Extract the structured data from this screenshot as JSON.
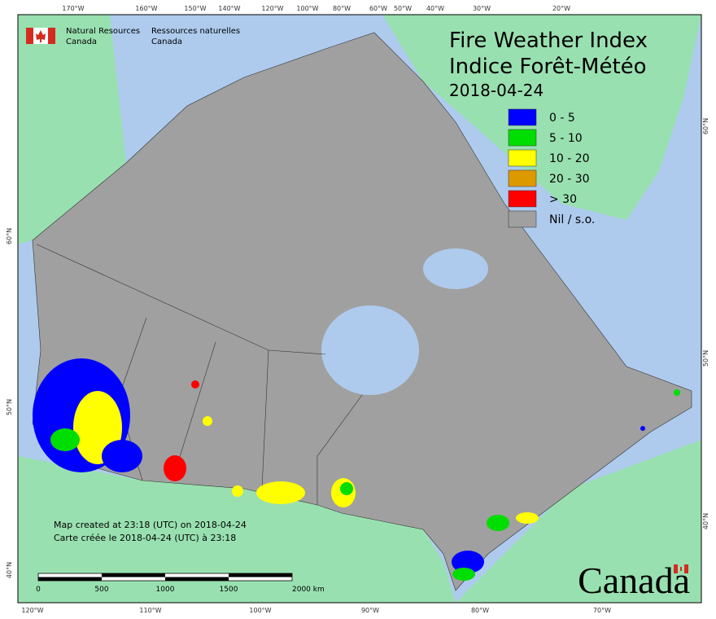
{
  "agency": {
    "en_line1": "Natural Resources",
    "en_line2": "Canada",
    "fr_line1": "Ressources naturelles",
    "fr_line2": "Canada"
  },
  "title": {
    "en": "Fire Weather Index",
    "fr": "Indice Forêt-Météo",
    "date": "2018-04-24"
  },
  "legend": [
    {
      "label": "0 - 5",
      "color": "#0000ff"
    },
    {
      "label": "5 - 10",
      "color": "#00dd00"
    },
    {
      "label": "10 - 20",
      "color": "#ffff00"
    },
    {
      "label": "20 - 30",
      "color": "#dd9900"
    },
    {
      "label": "> 30",
      "color": "#ff0000"
    },
    {
      "label": "Nil / s.o.",
      "color": "#a0a0a0"
    }
  ],
  "graticule": {
    "top": [
      "170°W",
      "160°W",
      "150°W",
      "140°W",
      "120°W",
      "100°W",
      "80°W",
      "60°W",
      "50°W",
      "40°W",
      "30°W",
      "20°W"
    ],
    "bottom": [
      "120°W",
      "110°W",
      "100°W",
      "90°W",
      "80°W",
      "70°W"
    ],
    "left": [
      "60°N",
      "50°N",
      "40°N"
    ],
    "right": [
      "60°N",
      "50°N",
      "40°N"
    ]
  },
  "footer": {
    "created_en": "Map created at 23:18 (UTC) on 2018-04-24",
    "created_fr": "Carte créée le 2018-04-24 (UTC) à 23:18"
  },
  "scale_bar": {
    "labels": [
      "0",
      "500",
      "1000",
      "1500",
      "2000 km"
    ]
  },
  "wordmark": "Canada"
}
